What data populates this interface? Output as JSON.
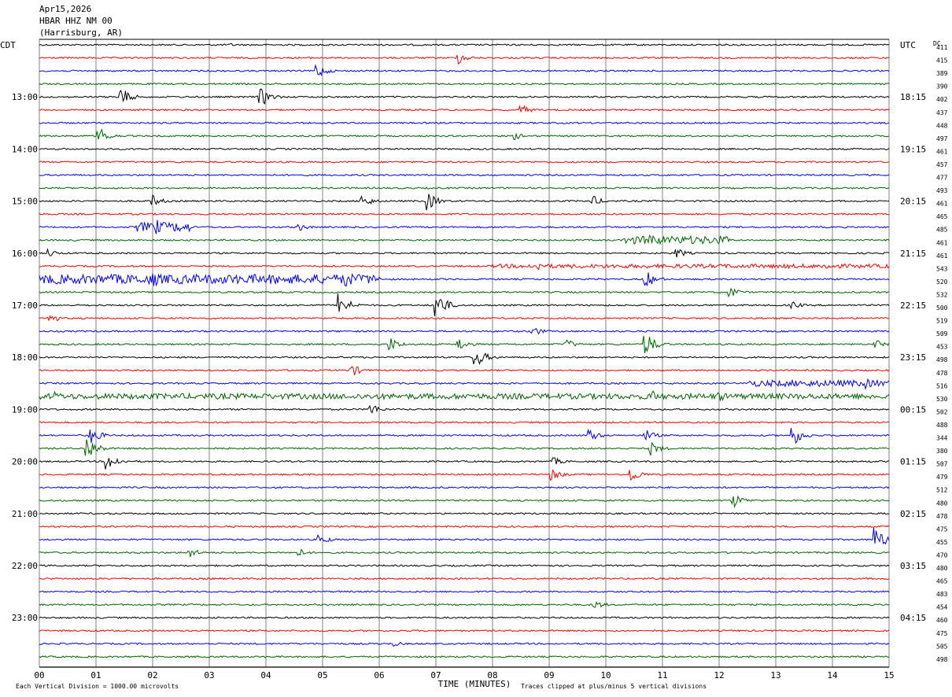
{
  "header": {
    "date": "Apr15,2026",
    "station": "HBAR HHZ NM 00",
    "location": "(Harrisburg, AR)"
  },
  "chart_data": {
    "type": "line",
    "title": "",
    "left_tz": "CDT",
    "right_tz": "UTC",
    "dc_label": "DC",
    "xlabel": "TIME (MINUTES)",
    "xlim": [
      0,
      15
    ],
    "x_ticks": [
      "00",
      "01",
      "02",
      "03",
      "04",
      "05",
      "06",
      "07",
      "08",
      "09",
      "10",
      "11",
      "12",
      "13",
      "14",
      "15"
    ],
    "left_hour_labels": [
      {
        "row": 4,
        "text": "13:00"
      },
      {
        "row": 8,
        "text": "14:00"
      },
      {
        "row": 12,
        "text": "15:00"
      },
      {
        "row": 16,
        "text": "16:00"
      },
      {
        "row": 20,
        "text": "17:00"
      },
      {
        "row": 24,
        "text": "18:00"
      },
      {
        "row": 28,
        "text": "19:00"
      },
      {
        "row": 32,
        "text": "20:00"
      },
      {
        "row": 36,
        "text": "21:00"
      },
      {
        "row": 40,
        "text": "22:00"
      },
      {
        "row": 44,
        "text": "23:00"
      }
    ],
    "right_hour_labels": [
      {
        "row": 0,
        "text": "UTC"
      },
      {
        "row": 4,
        "text": "18:15"
      },
      {
        "row": 8,
        "text": "19:15"
      },
      {
        "row": 12,
        "text": "20:15"
      },
      {
        "row": 16,
        "text": "21:15"
      },
      {
        "row": 20,
        "text": "22:15"
      },
      {
        "row": 24,
        "text": "23:15"
      },
      {
        "row": 28,
        "text": "00:15"
      },
      {
        "row": 32,
        "text": "01:15"
      },
      {
        "row": 36,
        "text": "02:15"
      },
      {
        "row": 40,
        "text": "03:15"
      },
      {
        "row": 44,
        "text": "04:15"
      }
    ],
    "dc_values": [
      "411",
      "415",
      "389",
      "390",
      "402",
      "437",
      "448",
      "497",
      "461",
      "457",
      "477",
      "493",
      "461",
      "465",
      "485",
      "461",
      "461",
      "543",
      "520",
      "532",
      "500",
      "519",
      "509",
      "453",
      "498",
      "478",
      "516",
      "530",
      "502",
      "488",
      "344",
      "380",
      "507",
      "479",
      "512",
      "480",
      "478",
      "475",
      "455",
      "470",
      "480",
      "465",
      "483",
      "454",
      "460",
      "475",
      "505",
      "498"
    ],
    "row_colors": [
      "#000000",
      "#ff0000",
      "#0000ff",
      "#006400"
    ],
    "grid_color": "#808080",
    "events": [
      {
        "row": 0,
        "minute": 3.4,
        "amp": 2
      },
      {
        "row": 1,
        "minute": 7.4,
        "amp": 8
      },
      {
        "row": 2,
        "minute": 4.9,
        "amp": 10
      },
      {
        "row": 4,
        "minute": 1.4,
        "amp": 16
      },
      {
        "row": 4,
        "minute": 3.9,
        "amp": 14
      },
      {
        "row": 5,
        "minute": 8.5,
        "amp": 7
      },
      {
        "row": 7,
        "minute": 1.05,
        "amp": 12
      },
      {
        "row": 7,
        "minute": 8.4,
        "amp": 5
      },
      {
        "row": 12,
        "minute": 2.0,
        "amp": 8
      },
      {
        "row": 12,
        "minute": 5.7,
        "amp": 9
      },
      {
        "row": 12,
        "minute": 6.85,
        "amp": 12
      },
      {
        "row": 12,
        "minute": 9.75,
        "amp": 8
      },
      {
        "row": 14,
        "minute": 2.1,
        "amp": 10
      },
      {
        "row": 14,
        "minute": 4.6,
        "amp": 5
      },
      {
        "row": 15,
        "minute": 10.8,
        "amp": 10
      },
      {
        "row": 16,
        "minute": 11.25,
        "amp": 7
      },
      {
        "row": 16,
        "minute": 0.15,
        "amp": 6
      },
      {
        "row": 17,
        "minute": 8.8,
        "amp": 6
      },
      {
        "row": 17,
        "minute": 13.9,
        "amp": 6
      },
      {
        "row": 18,
        "minute": 2.0,
        "amp": 12
      },
      {
        "row": 18,
        "minute": 5.4,
        "amp": 14
      },
      {
        "row": 18,
        "minute": 10.7,
        "amp": 12
      },
      {
        "row": 19,
        "minute": 12.2,
        "amp": 7
      },
      {
        "row": 20,
        "minute": 5.3,
        "amp": 16
      },
      {
        "row": 20,
        "minute": 7.0,
        "amp": 20
      },
      {
        "row": 20,
        "minute": 13.3,
        "amp": 5
      },
      {
        "row": 21,
        "minute": 0.15,
        "amp": 8
      },
      {
        "row": 22,
        "minute": 8.7,
        "amp": 7
      },
      {
        "row": 23,
        "minute": 6.2,
        "amp": 9
      },
      {
        "row": 23,
        "minute": 7.4,
        "amp": 9
      },
      {
        "row": 23,
        "minute": 9.3,
        "amp": 7
      },
      {
        "row": 23,
        "minute": 10.7,
        "amp": 16
      },
      {
        "row": 23,
        "minute": 14.75,
        "amp": 7
      },
      {
        "row": 24,
        "minute": 7.7,
        "amp": 14
      },
      {
        "row": 25,
        "minute": 5.5,
        "amp": 9
      },
      {
        "row": 26,
        "minute": 14.6,
        "amp": 7
      },
      {
        "row": 27,
        "minute": 10.8,
        "amp": 9
      },
      {
        "row": 27,
        "minute": 12.0,
        "amp": 7
      },
      {
        "row": 27,
        "minute": 0.3,
        "amp": 6
      },
      {
        "row": 28,
        "minute": 5.85,
        "amp": 8
      },
      {
        "row": 30,
        "minute": 0.9,
        "amp": 12
      },
      {
        "row": 30,
        "minute": 9.7,
        "amp": 9
      },
      {
        "row": 30,
        "minute": 10.7,
        "amp": 8
      },
      {
        "row": 30,
        "minute": 13.3,
        "amp": 14
      },
      {
        "row": 31,
        "minute": 0.85,
        "amp": 16
      },
      {
        "row": 31,
        "minute": 10.8,
        "amp": 9
      },
      {
        "row": 32,
        "minute": 1.2,
        "amp": 12
      },
      {
        "row": 32,
        "minute": 9.1,
        "amp": 5
      },
      {
        "row": 33,
        "minute": 9.05,
        "amp": 8
      },
      {
        "row": 33,
        "minute": 10.45,
        "amp": 10
      },
      {
        "row": 35,
        "minute": 12.25,
        "amp": 10
      },
      {
        "row": 38,
        "minute": 4.95,
        "amp": 7
      },
      {
        "row": 38,
        "minute": 14.75,
        "amp": 18
      },
      {
        "row": 39,
        "minute": 2.65,
        "amp": 7
      },
      {
        "row": 39,
        "minute": 4.6,
        "amp": 5
      },
      {
        "row": 43,
        "minute": 9.8,
        "amp": 6
      },
      {
        "row": 46,
        "minute": 6.25,
        "amp": 4
      }
    ],
    "noisy_segments": [
      {
        "row": 18,
        "from": 0.0,
        "to": 6.0,
        "amp": 6
      },
      {
        "row": 27,
        "from": 0.0,
        "to": 15.0,
        "amp": 3.5
      },
      {
        "row": 26,
        "from": 12.5,
        "to": 15.0,
        "amp": 4
      },
      {
        "row": 15,
        "from": 10.3,
        "to": 12.2,
        "amp": 5
      },
      {
        "row": 17,
        "from": 8.0,
        "to": 15.0,
        "amp": 2.5
      },
      {
        "row": 14,
        "from": 1.7,
        "to": 2.7,
        "amp": 6
      }
    ]
  },
  "footer": {
    "left": "Each Vertical Division = 1000.00 microvolts",
    "right": "Traces clipped at plus/minus 5 vertical divisions"
  }
}
